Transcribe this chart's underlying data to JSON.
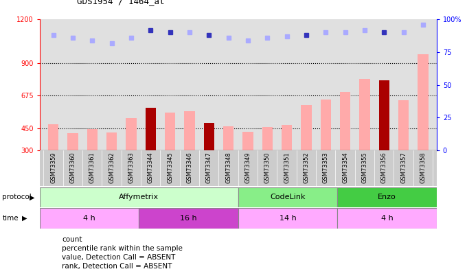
{
  "title": "GDS1954 / 1464_at",
  "samples": [
    "GSM73359",
    "GSM73360",
    "GSM73361",
    "GSM73362",
    "GSM73363",
    "GSM73344",
    "GSM73345",
    "GSM73346",
    "GSM73347",
    "GSM73348",
    "GSM73349",
    "GSM73350",
    "GSM73351",
    "GSM73352",
    "GSM73353",
    "GSM73354",
    "GSM73355",
    "GSM73356",
    "GSM73357",
    "GSM73358"
  ],
  "bar_values": [
    480,
    415,
    445,
    420,
    520,
    590,
    560,
    570,
    490,
    465,
    425,
    460,
    475,
    610,
    650,
    700,
    790,
    780,
    645,
    960
  ],
  "bar_colors": [
    "#ffaaaa",
    "#ffaaaa",
    "#ffaaaa",
    "#ffaaaa",
    "#ffaaaa",
    "#aa0000",
    "#ffaaaa",
    "#ffaaaa",
    "#aa0000",
    "#ffaaaa",
    "#ffaaaa",
    "#ffaaaa",
    "#ffaaaa",
    "#ffaaaa",
    "#ffaaaa",
    "#ffaaaa",
    "#ffaaaa",
    "#aa0000",
    "#ffaaaa",
    "#ffaaaa"
  ],
  "rank_values": [
    88,
    86,
    84,
    82,
    86,
    92,
    90,
    90,
    88,
    86,
    84,
    86,
    87,
    88,
    90,
    90,
    92,
    90,
    90,
    96
  ],
  "rank_colors": [
    "#aaaaff",
    "#aaaaff",
    "#aaaaff",
    "#aaaaff",
    "#aaaaff",
    "#3333bb",
    "#3333bb",
    "#aaaaff",
    "#3333bb",
    "#aaaaff",
    "#aaaaff",
    "#aaaaff",
    "#aaaaff",
    "#3333bb",
    "#aaaaff",
    "#aaaaff",
    "#aaaaff",
    "#3333bb",
    "#aaaaff",
    "#aaaaff"
  ],
  "ylim_left": [
    300,
    1200
  ],
  "ylim_right": [
    0,
    100
  ],
  "yticks_left": [
    300,
    450,
    675,
    900,
    1200
  ],
  "ytick_labels_left": [
    "300",
    "450",
    "675",
    "900",
    "1200"
  ],
  "yticks_right": [
    0,
    25,
    50,
    75,
    100
  ],
  "ytick_labels_right": [
    "0",
    "25",
    "50",
    "75",
    "100%"
  ],
  "hlines": [
    450,
    675,
    900
  ],
  "protocol_groups": [
    {
      "label": "Affymetrix",
      "start": 0,
      "end": 10,
      "color": "#ccffcc"
    },
    {
      "label": "CodeLink",
      "start": 10,
      "end": 15,
      "color": "#88ee88"
    },
    {
      "label": "Enzo",
      "start": 15,
      "end": 20,
      "color": "#44cc44"
    }
  ],
  "time_groups": [
    {
      "label": "4 h",
      "start": 0,
      "end": 5,
      "color": "#ffaaff"
    },
    {
      "label": "16 h",
      "start": 5,
      "end": 10,
      "color": "#cc44cc"
    },
    {
      "label": "14 h",
      "start": 10,
      "end": 15,
      "color": "#ffaaff"
    },
    {
      "label": "4 h",
      "start": 15,
      "end": 20,
      "color": "#ffaaff"
    }
  ],
  "legend_items": [
    {
      "color": "#aa0000",
      "label": "count"
    },
    {
      "color": "#3333bb",
      "label": "percentile rank within the sample"
    },
    {
      "color": "#ffaaaa",
      "label": "value, Detection Call = ABSENT"
    },
    {
      "color": "#aaaaff",
      "label": "rank, Detection Call = ABSENT"
    }
  ],
  "bg_color": "#ffffff",
  "plot_bg_color": "#e0e0e0",
  "xtick_bg_color": "#cccccc"
}
